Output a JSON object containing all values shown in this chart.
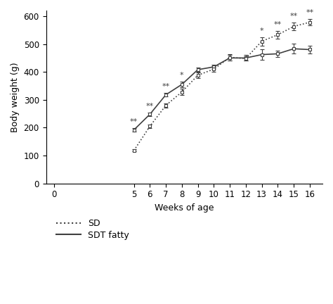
{
  "weeks": [
    5,
    6,
    7,
    8,
    9,
    10,
    11,
    12,
    13,
    14,
    15,
    16
  ],
  "sdt_fatty_mean": [
    192,
    248,
    318,
    355,
    408,
    418,
    450,
    450,
    462,
    465,
    483,
    480
  ],
  "sdt_fatty_err": [
    7,
    7,
    7,
    10,
    8,
    8,
    10,
    10,
    18,
    12,
    18,
    15
  ],
  "sd_mean": [
    118,
    205,
    280,
    328,
    388,
    410,
    452,
    448,
    510,
    533,
    563,
    578
  ],
  "sd_err": [
    4,
    6,
    8,
    12,
    10,
    10,
    12,
    8,
    15,
    15,
    13,
    12
  ],
  "sig_map_weeks": [
    5,
    6,
    7,
    8,
    13,
    14,
    15,
    16
  ],
  "sig_map_labels": [
    "**",
    "**",
    "**",
    "*",
    "*",
    "**",
    "**",
    "**"
  ],
  "ylim": [
    0,
    620
  ],
  "yticks": [
    0,
    100,
    200,
    300,
    400,
    500,
    600
  ],
  "xlim": [
    -0.5,
    16.8
  ],
  "xticks": [
    0,
    5,
    6,
    7,
    8,
    9,
    10,
    11,
    12,
    13,
    14,
    15,
    16
  ],
  "xlabel": "Weeks of age",
  "ylabel": "Body weight (g)",
  "line_color": "#404040",
  "bg_color": "#ffffff",
  "legend_sd": "SD",
  "legend_sdt": "SDT fatty"
}
